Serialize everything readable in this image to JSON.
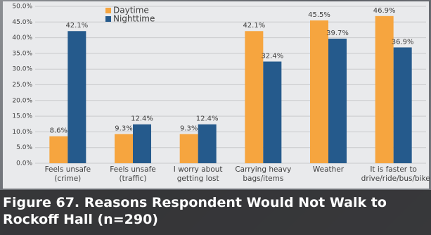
{
  "chart_data": {
    "type": "bar",
    "title": "Figure 67. Reasons Respondent Would Not Walk to Rockoff Hall (n=290)",
    "categories": [
      "Feels unsafe (crime)",
      "Feels unsafe (traffic)",
      "I worry about getting lost",
      "Carrying heavy bags/items",
      "Weather",
      "It is faster to drive/ride/bus/bike"
    ],
    "series": [
      {
        "name": "Daytime",
        "color": "#f6a53f",
        "values": [
          8.6,
          9.3,
          9.3,
          42.1,
          45.5,
          46.9
        ],
        "value_labels": [
          "8.6%",
          "9.3%",
          "9.3%",
          "42.1%",
          "45.5%",
          "46.9%"
        ]
      },
      {
        "name": "Nighttime",
        "color": "#255a8c",
        "values": [
          42.1,
          12.4,
          12.4,
          32.4,
          39.7,
          36.9
        ],
        "value_labels": [
          "42.1%",
          "12.4%",
          "12.4%",
          "32.4%",
          "39.7%",
          "36.9%"
        ]
      }
    ],
    "ylim": [
      0,
      50
    ],
    "yticks": [
      {
        "value": 0,
        "label": "0.0%"
      },
      {
        "value": 5,
        "label": "5.0%"
      },
      {
        "value": 10,
        "label": "10.0%"
      },
      {
        "value": 15,
        "label": "15.0%"
      },
      {
        "value": 20,
        "label": "20.0%"
      },
      {
        "value": 25,
        "label": "25.0%"
      },
      {
        "value": 30,
        "label": "30.0%"
      },
      {
        "value": 35,
        "label": "35.0%"
      },
      {
        "value": 40,
        "label": "40.0%"
      },
      {
        "value": 45,
        "label": "45.0%"
      },
      {
        "value": 50,
        "label": "50.0%"
      }
    ],
    "grid": true,
    "legend": "top-left"
  }
}
